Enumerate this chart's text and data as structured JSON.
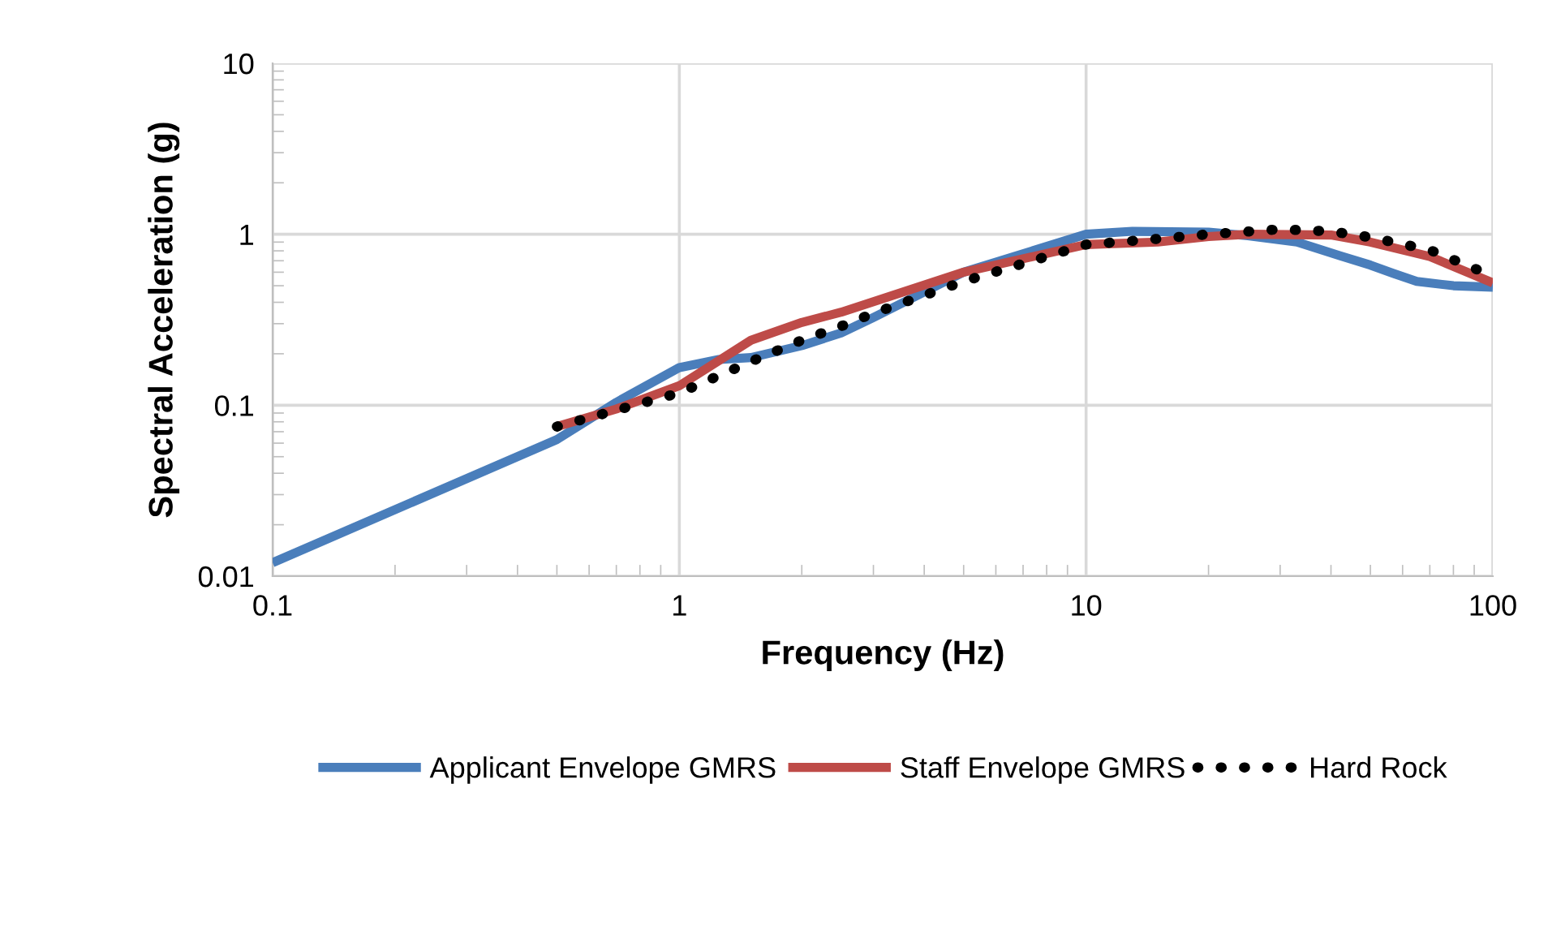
{
  "chart_data": {
    "type": "line",
    "xlabel": "Frequency (Hz)",
    "ylabel": "Spectral Acceleration (g)",
    "log": "xy",
    "xlim": [
      0.1,
      100
    ],
    "ylim": [
      0.01,
      10
    ],
    "xticks": [
      0.1,
      1,
      10,
      100
    ],
    "yticks": [
      0.01,
      0.1,
      1,
      10
    ],
    "grid": true,
    "legend": "bottom",
    "series": [
      {
        "name": "Applicant Envelope GMRS",
        "color": "#4a7ebb",
        "line_style": "solid",
        "x": [
          0.1,
          0.5,
          0.7,
          1,
          1.25,
          1.5,
          2,
          2.5,
          3,
          5,
          10,
          13,
          20,
          25,
          33,
          42,
          50,
          57,
          65,
          80,
          100
        ],
        "values": [
          0.012,
          0.063,
          0.104,
          0.166,
          0.185,
          0.19,
          0.223,
          0.265,
          0.326,
          0.6,
          1.0,
          1.04,
          1.03,
          0.98,
          0.9,
          0.75,
          0.66,
          0.59,
          0.53,
          0.5,
          0.49
        ]
      },
      {
        "name": "Staff Envelope GMRS",
        "color": "#be4b48",
        "line_style": "solid",
        "x": [
          0.5,
          0.7,
          1,
          1.5,
          2,
          2.5,
          5,
          10,
          15,
          20,
          25,
          40,
          50,
          70,
          100
        ],
        "values": [
          0.075,
          0.095,
          0.13,
          0.24,
          0.305,
          0.35,
          0.6,
          0.87,
          0.9,
          0.97,
          1.0,
          0.99,
          0.9,
          0.74,
          0.52
        ]
      },
      {
        "name": "Hard Rock",
        "color": "#000000",
        "line_style": "dotted",
        "x": [
          0.5,
          1,
          1.5,
          2,
          2.5,
          3,
          5,
          10,
          15,
          20,
          30,
          40,
          50,
          70,
          100
        ],
        "values": [
          0.075,
          0.118,
          0.18,
          0.24,
          0.29,
          0.345,
          0.53,
          0.87,
          0.94,
          1.0,
          1.07,
          1.04,
          0.96,
          0.81,
          0.57
        ]
      }
    ]
  }
}
